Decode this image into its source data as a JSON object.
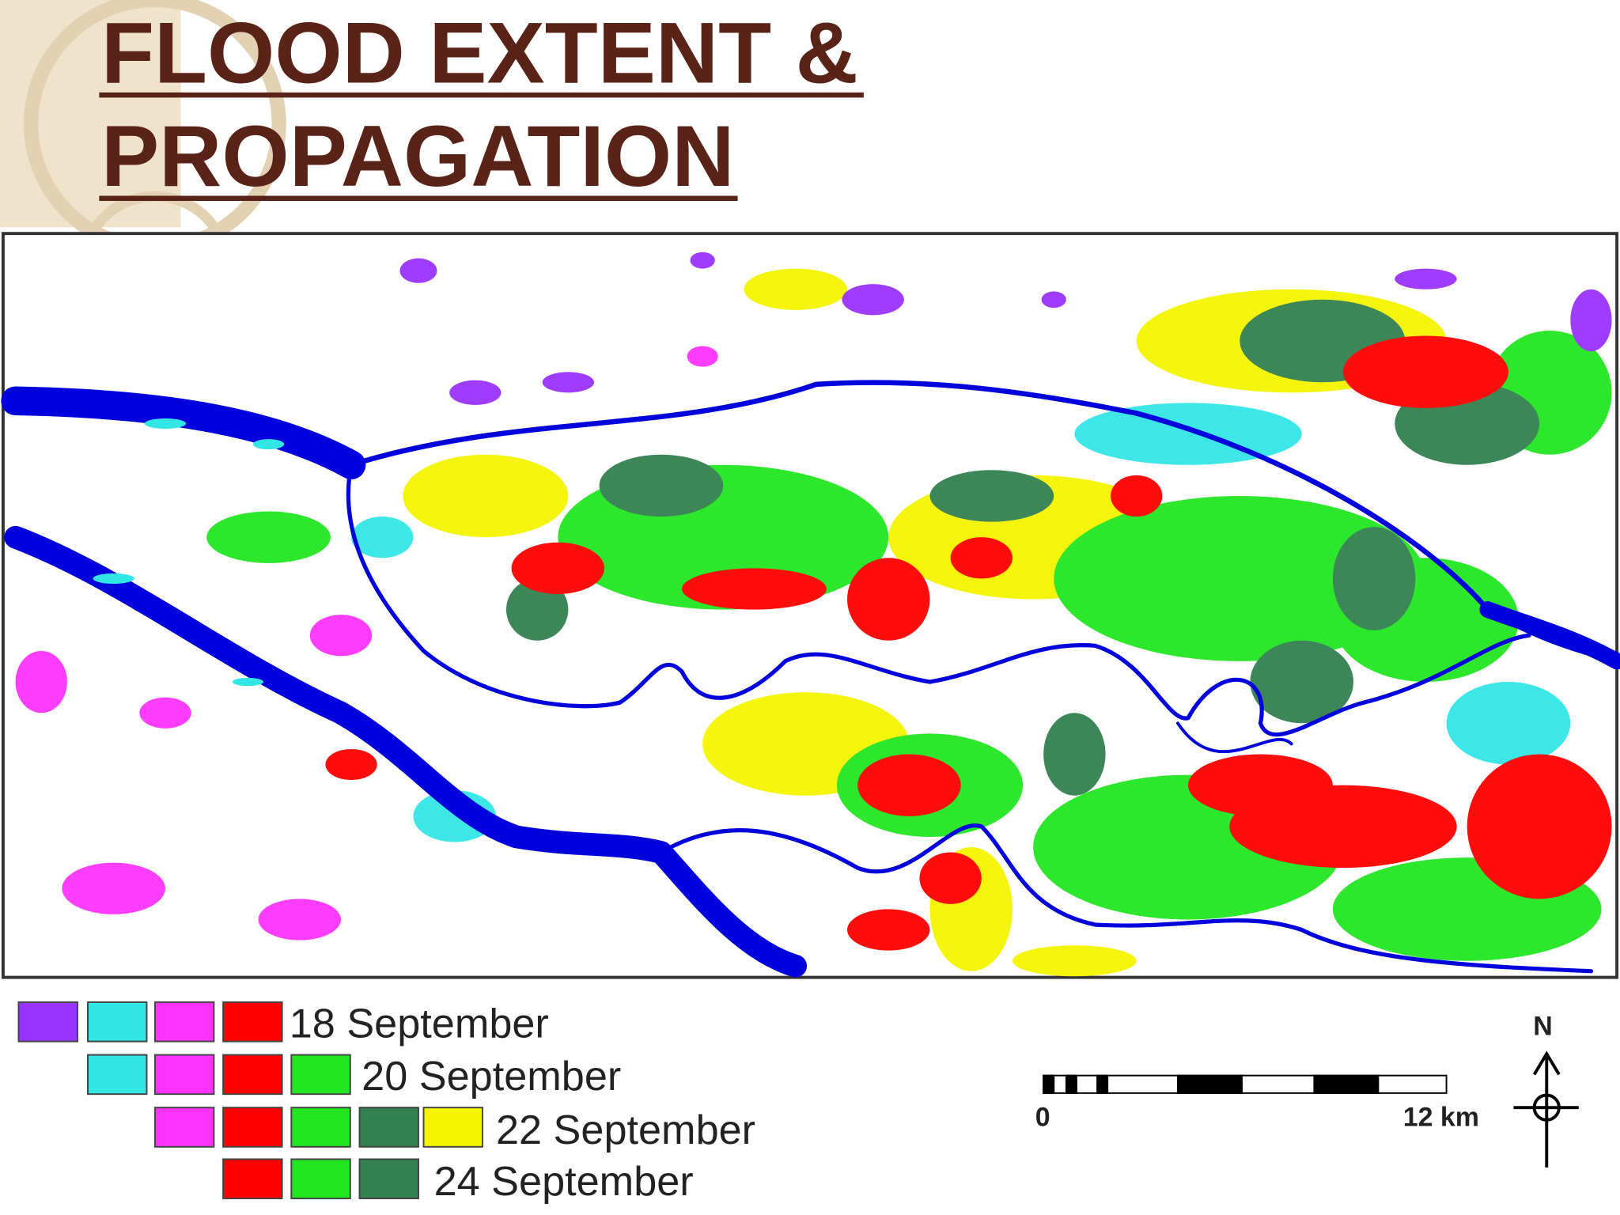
{
  "header": {
    "title_lines": [
      "FLOOD EXTENT &",
      "PROPAGATION"
    ]
  },
  "legend": {
    "items": [
      {
        "label": "18 September"
      },
      {
        "label": "20 September"
      },
      {
        "label": "22 September"
      },
      {
        "label": "24 September"
      }
    ]
  },
  "scale_bar": {
    "start_label": "0",
    "end_label": "12 km"
  },
  "north_arrow": {
    "label": "N"
  }
}
